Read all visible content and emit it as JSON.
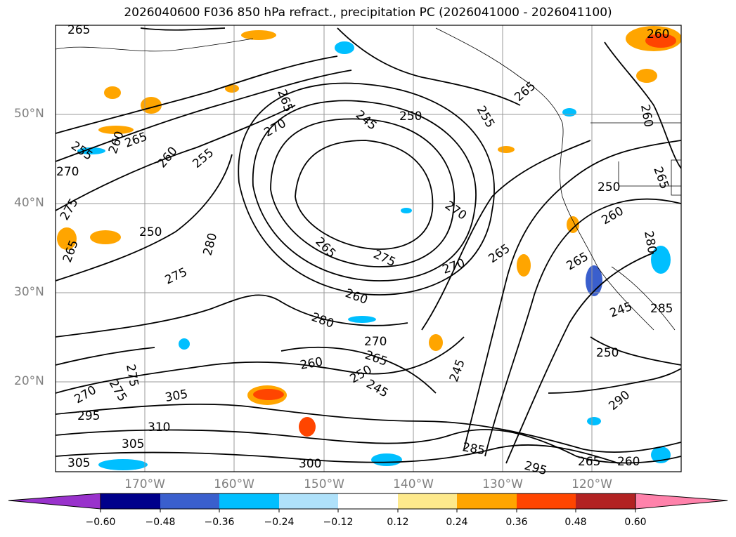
{
  "title": "2026040600 F036 850 hPa refract., precipitation PC (2026041000 - 2026041100)",
  "lat_labels": [
    "50°N",
    "40°N",
    "30°N",
    "20°N"
  ],
  "lon_labels": [
    "170°W",
    "160°W",
    "150°W",
    "140°W",
    "130°W",
    "120°W"
  ],
  "contour_labels": [
    "265",
    "260",
    "255",
    "260",
    "265",
    "270",
    "275",
    "265",
    "250",
    "260",
    "255",
    "265",
    "270",
    "245",
    "250",
    "255",
    "265",
    "260",
    "265",
    "275",
    "280",
    "250",
    "270",
    "265",
    "275",
    "260",
    "280",
    "270",
    "265",
    "260",
    "265",
    "280",
    "270",
    "265",
    "260",
    "250",
    "245",
    "245",
    "250",
    "245",
    "285",
    "290",
    "275",
    "270",
    "275",
    "295",
    "305",
    "310",
    "305",
    "305",
    "300",
    "285",
    "295",
    "265",
    "260"
  ],
  "colorbar": {
    "ticks": [
      "−0.60",
      "−0.48",
      "−0.36",
      "−0.24",
      "−0.12",
      "0.12",
      "0.24",
      "0.36",
      "0.48",
      "0.60"
    ],
    "colors": [
      "#9932cc",
      "#00008b",
      "#3a5fcd",
      "#00bfff",
      "#afe1fa",
      "#ffffff",
      "#fde98c",
      "#ffa500",
      "#ff4500",
      "#b22222",
      "#ff82ab"
    ]
  }
}
